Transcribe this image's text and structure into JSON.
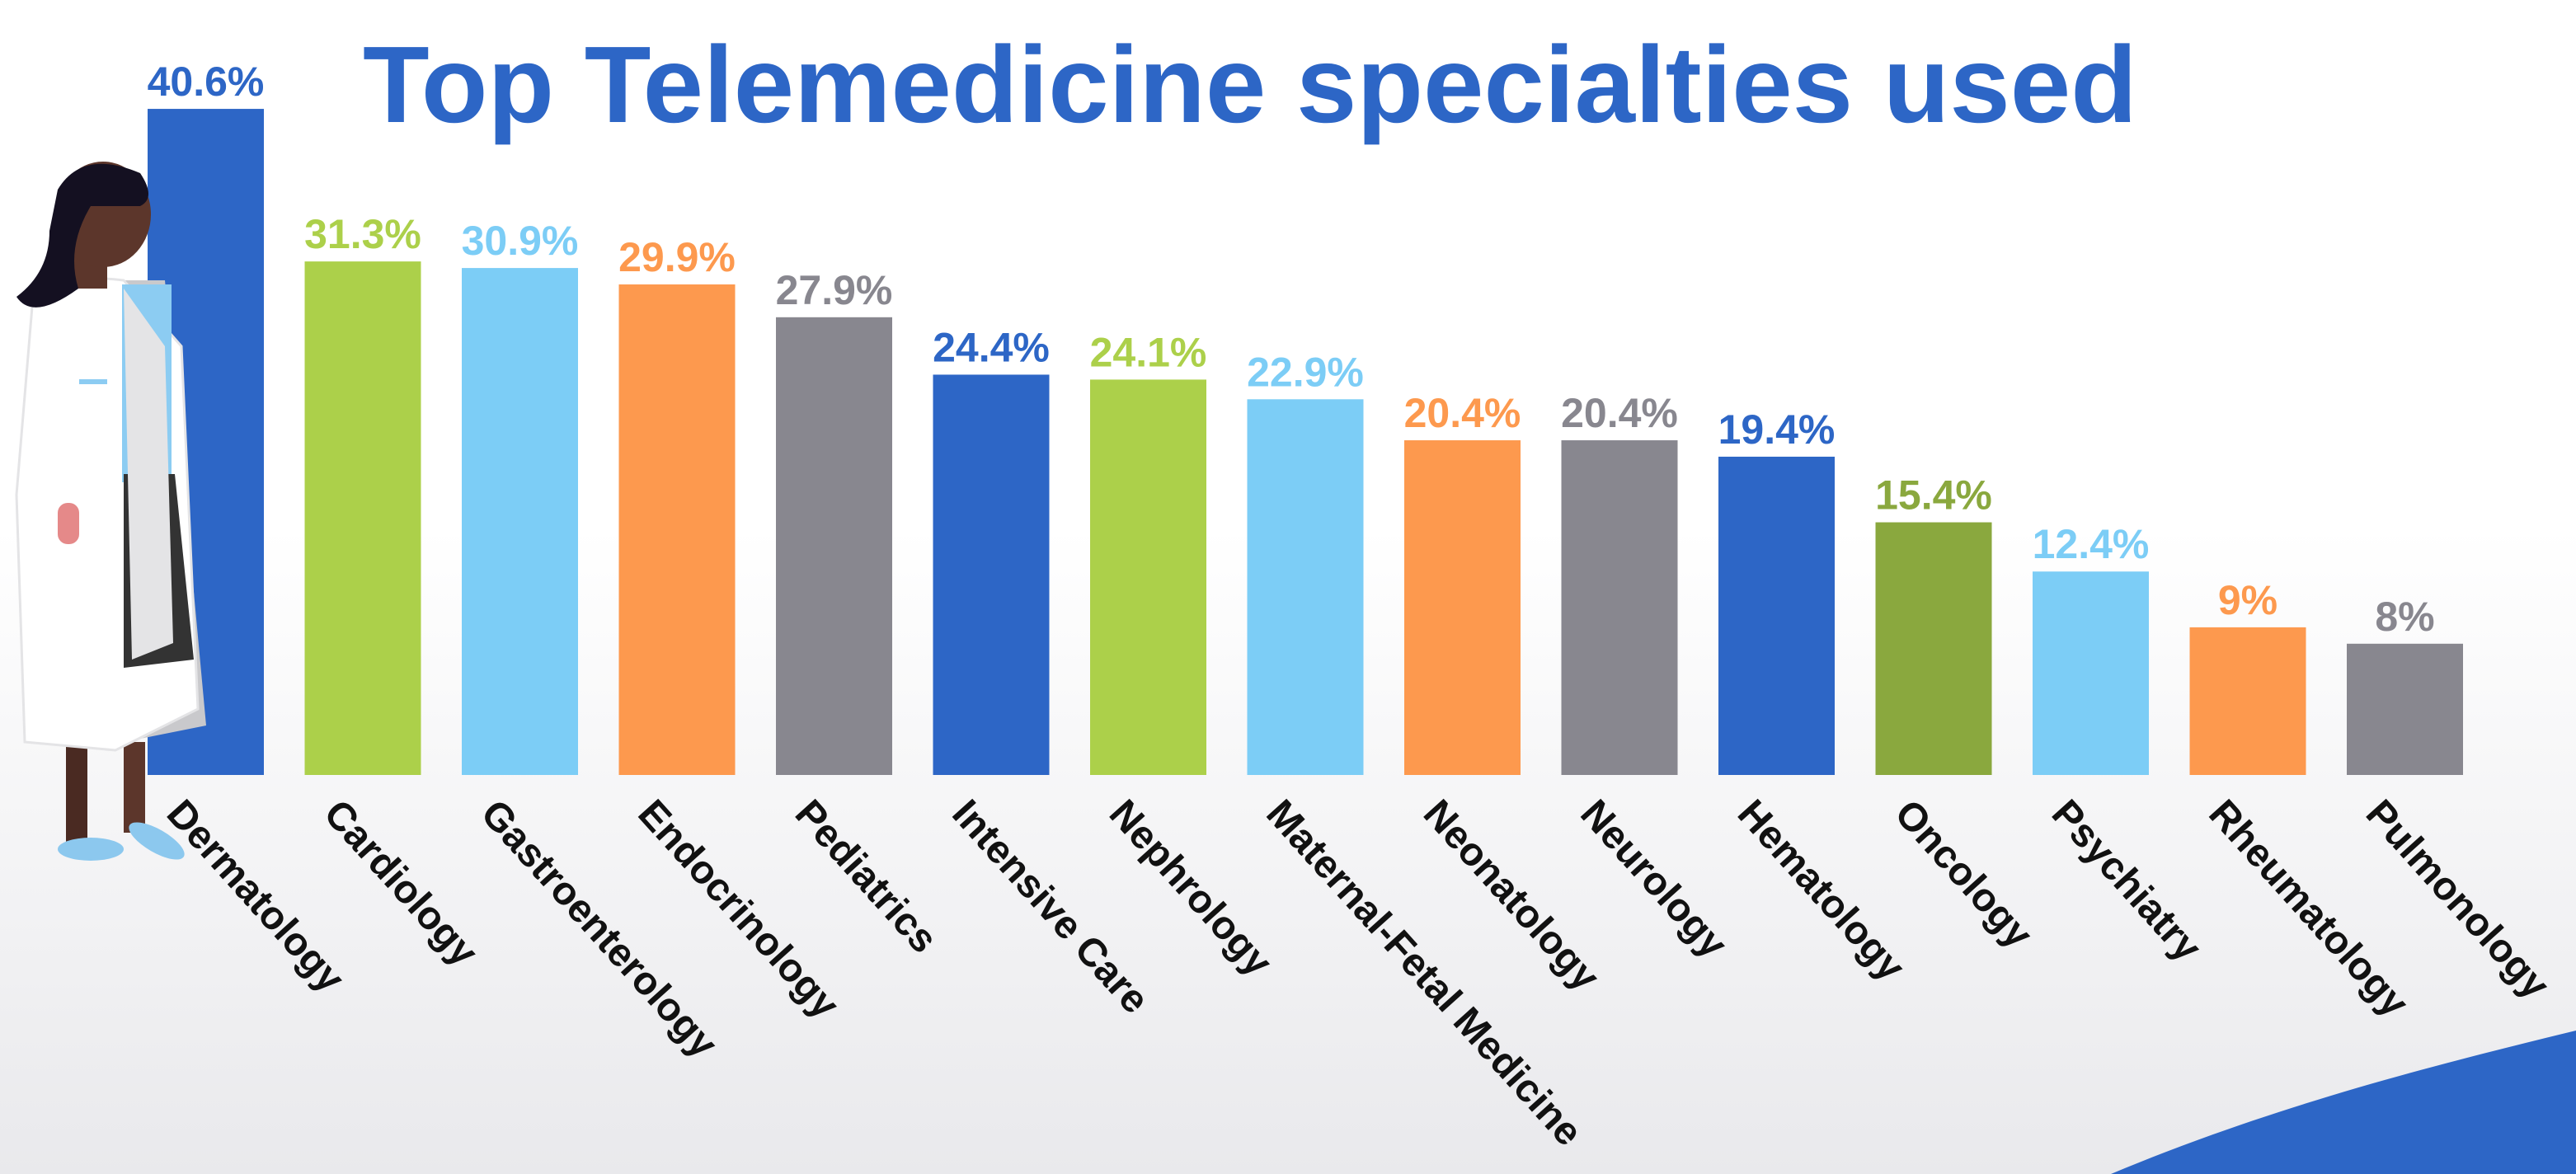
{
  "chart_data": {
    "type": "bar",
    "title": "Top Telemedicine specialties used",
    "categories": [
      "Dermatology",
      "Cardiology",
      "Gastroenterology",
      "Endocrinology",
      "Pediatrics",
      "Intensive Care",
      "Nephrology",
      "Maternal-Fetal Medicine",
      "Neonatology",
      "Neurology",
      "Hematology",
      "Oncology",
      "Psychiatry",
      "Rheumatology",
      "Pulmonology"
    ],
    "values": [
      40.6,
      31.3,
      30.9,
      29.9,
      27.9,
      24.4,
      24.1,
      22.9,
      20.4,
      20.4,
      19.4,
      15.4,
      12.4,
      9,
      8
    ],
    "value_labels": [
      "40.6%",
      "31.3%",
      "30.9%",
      "29.9%",
      "27.9%",
      "24.4%",
      "24.1%",
      "22.9%",
      "20.4%",
      "20.4%",
      "19.4%",
      "15.4%",
      "12.4%",
      "9%",
      "8%"
    ],
    "colors": [
      "#2d66c6",
      "#acd04a",
      "#7ccdf6",
      "#fd994e",
      "#88878f",
      "#2d66c6",
      "#acd04a",
      "#7ccdf6",
      "#fd994e",
      "#88878f",
      "#2d66c6",
      "#8aa83e",
      "#7ccdf6",
      "#fd994e",
      "#88878f"
    ],
    "title_color": "#2d66c6"
  }
}
